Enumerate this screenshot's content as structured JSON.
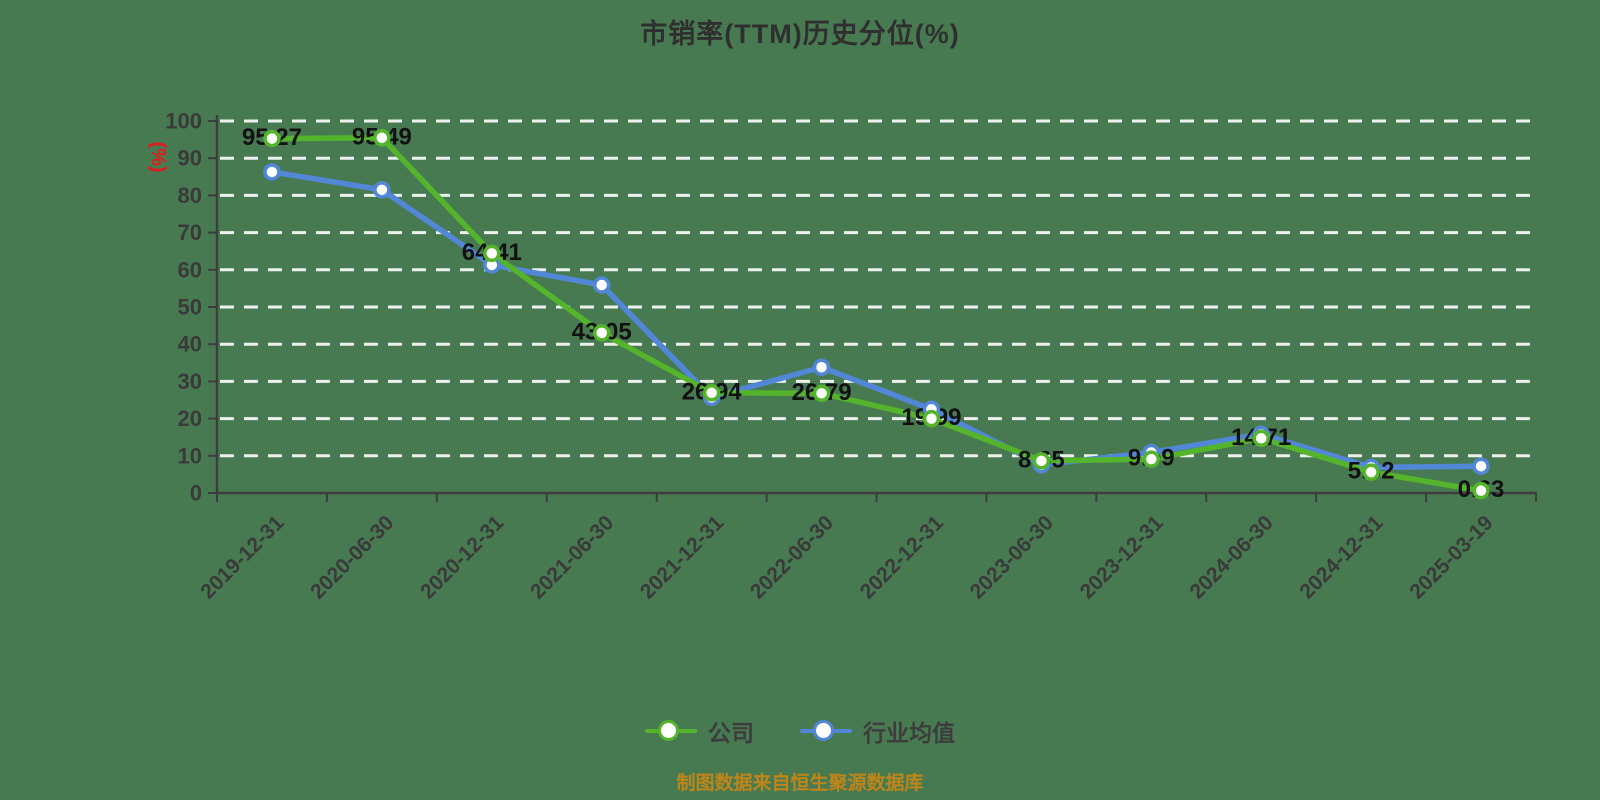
{
  "title": "市销率(TTM)历史分位(%)",
  "source_note": "制图数据来自恒生聚源数据库",
  "y_axis": {
    "unit_label": "(%)",
    "unit_color": "#e51a1a",
    "ticks": [
      0,
      10,
      20,
      30,
      40,
      50,
      60,
      70,
      80,
      90,
      100
    ]
  },
  "legend": {
    "items": [
      {
        "label": "公司",
        "color": "#54b52c"
      },
      {
        "label": "行业均值",
        "color": "#5287d7"
      }
    ]
  },
  "chart_data": {
    "type": "line",
    "title": "市销率(TTM)历史分位(%)",
    "ylabel": "(%)",
    "ylim": [
      0,
      100
    ],
    "y_ticks": [
      0,
      10,
      20,
      30,
      40,
      50,
      60,
      70,
      80,
      90,
      100
    ],
    "grid": "horizontal dashed white lines",
    "legend_position": "bottom",
    "categories": [
      "2019-12-31",
      "2020-06-30",
      "2020-12-31",
      "2021-06-30",
      "2021-12-31",
      "2022-06-30",
      "2022-12-31",
      "2023-06-30",
      "2023-12-31",
      "2024-06-30",
      "2024-12-31",
      "2025-03-19"
    ],
    "series": [
      {
        "name": "公司",
        "color": "#54b52c",
        "values": [
          95.27,
          95.49,
          64.41,
          43.05,
          26.94,
          26.79,
          19.99,
          8.65,
          9.09,
          14.71,
          5.62,
          0.63
        ],
        "data_labels": "shown"
      },
      {
        "name": "行业均值",
        "color": "#5287d7",
        "values": [
          86.3,
          81.5,
          61.3,
          55.9,
          25.7,
          33.8,
          22.5,
          7.6,
          10.9,
          15.8,
          6.9,
          7.2
        ],
        "data_labels": "hidden"
      }
    ]
  },
  "colors": {
    "background": "#487a52",
    "grid_line": "#fafafa",
    "axis": "#3d3d3d",
    "tick_label": "#3a3a3a",
    "data_label": "#111111",
    "title": "#2f2f2f",
    "source_note": "#c08518"
  }
}
